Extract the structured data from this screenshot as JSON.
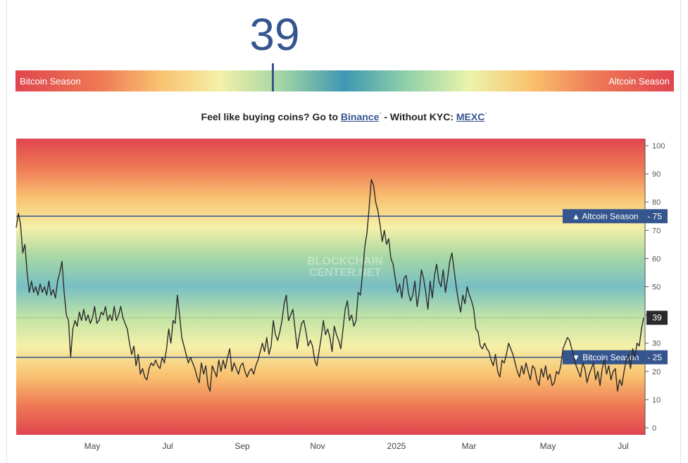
{
  "index_value": "39",
  "season_bar": {
    "left_label": "Bitcoin Season",
    "right_label": "Altcoin Season",
    "value": 39
  },
  "promo": {
    "prefix": "Feel like buying coins? Go to ",
    "link1": "Binance",
    "mark1": "*",
    "middle": " - Without KYC: ",
    "link2": "MEXC",
    "mark2": "*"
  },
  "watermark": [
    "BLOCKCHAIN",
    "CENTER.NET"
  ],
  "colors": {
    "accent": "#35558f",
    "bitcoin_season": "#e0454e",
    "neutral": "#3e97b3",
    "current_label_bg": "#2b2b2b"
  },
  "chart_data": {
    "type": "line",
    "ylim": [
      0,
      100
    ],
    "y_ticks": [
      0,
      10,
      20,
      30,
      40,
      50,
      60,
      70,
      80,
      90,
      100
    ],
    "x_ticks": [
      "May",
      "Jul",
      "Sep",
      "Nov",
      "2025",
      "Mar",
      "May",
      "Jul"
    ],
    "reference_lines": [
      {
        "label": "▲ Altcoin Season",
        "value": 75
      },
      {
        "label": "▼ Bitcoin Season",
        "value": 25
      }
    ],
    "current_value": 39,
    "series": [
      {
        "values": [
          71,
          76,
          72,
          62,
          65,
          55,
          48,
          52,
          48,
          50,
          47,
          51,
          48,
          50,
          47,
          52,
          47,
          49,
          46,
          52,
          55,
          59,
          48,
          40,
          38,
          25,
          35,
          38,
          36,
          41,
          38,
          42,
          38,
          40,
          37,
          39,
          43,
          37,
          38,
          41,
          40,
          43,
          38,
          40,
          38,
          43,
          38,
          40,
          43,
          39,
          37,
          35,
          30,
          26,
          29,
          22,
          26,
          19,
          21,
          18,
          17,
          21,
          23,
          22,
          24,
          22,
          21,
          25,
          23,
          28,
          35,
          30,
          38,
          37,
          47,
          40,
          32,
          29,
          26,
          23,
          25,
          23,
          21,
          18,
          16,
          23,
          19,
          22,
          15,
          13,
          22,
          20,
          18,
          24,
          20,
          24,
          21,
          25,
          28,
          20,
          23,
          21,
          19,
          22,
          23,
          20,
          18,
          20,
          21,
          19,
          22,
          24,
          27,
          30,
          27,
          32,
          26,
          29,
          38,
          33,
          31,
          34,
          38,
          44,
          47,
          38,
          40,
          42,
          35,
          28,
          33,
          37,
          38,
          34,
          29,
          31,
          29,
          24,
          22,
          27,
          32,
          38,
          33,
          35,
          32,
          27,
          36,
          33,
          31,
          28,
          35,
          42,
          45,
          38,
          40,
          36,
          38,
          48,
          47,
          55,
          64,
          69,
          78,
          88,
          86,
          80,
          77,
          72,
          66,
          70,
          65,
          67,
          60,
          58,
          53,
          48,
          51,
          46,
          53,
          54,
          48,
          45,
          47,
          52,
          43,
          48,
          56,
          53,
          48,
          42,
          52,
          46,
          54,
          58,
          52,
          50,
          56,
          48,
          53,
          59,
          62,
          56,
          50,
          45,
          41,
          47,
          44,
          50,
          47,
          45,
          42,
          35,
          34,
          29,
          28,
          30,
          28,
          27,
          24,
          22,
          26,
          20,
          18,
          24,
          23,
          26,
          30,
          28,
          26,
          23,
          20,
          18,
          22,
          19,
          23,
          20,
          17,
          22,
          21,
          17,
          15,
          21,
          18,
          22,
          17,
          19,
          15,
          16,
          20,
          19,
          22,
          28,
          30,
          32,
          31,
          28,
          25,
          22,
          20,
          18,
          23,
          21,
          16,
          19,
          21,
          23,
          17,
          20,
          15,
          21,
          24,
          19,
          22,
          17,
          20,
          21,
          13,
          17,
          15,
          20,
          24,
          26,
          21,
          28,
          25,
          30,
          29,
          35,
          39
        ]
      }
    ]
  }
}
